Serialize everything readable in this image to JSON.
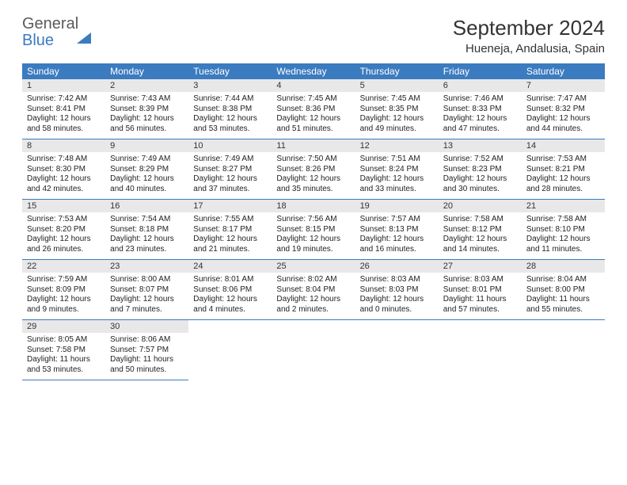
{
  "brand": {
    "word1": "General",
    "word2": "Blue"
  },
  "title": "September 2024",
  "location": "Hueneja, Andalusia, Spain",
  "colors": {
    "header_bg": "#3b7bbf",
    "header_text": "#ffffff",
    "daynum_bg": "#e8e8e8",
    "text": "#222222",
    "rule": "#3b7bbf"
  },
  "weekdays": [
    "Sunday",
    "Monday",
    "Tuesday",
    "Wednesday",
    "Thursday",
    "Friday",
    "Saturday"
  ],
  "weeks": [
    [
      {
        "n": "1",
        "sr": "7:42 AM",
        "ss": "8:41 PM",
        "dl": "12 hours and 58 minutes."
      },
      {
        "n": "2",
        "sr": "7:43 AM",
        "ss": "8:39 PM",
        "dl": "12 hours and 56 minutes."
      },
      {
        "n": "3",
        "sr": "7:44 AM",
        "ss": "8:38 PM",
        "dl": "12 hours and 53 minutes."
      },
      {
        "n": "4",
        "sr": "7:45 AM",
        "ss": "8:36 PM",
        "dl": "12 hours and 51 minutes."
      },
      {
        "n": "5",
        "sr": "7:45 AM",
        "ss": "8:35 PM",
        "dl": "12 hours and 49 minutes."
      },
      {
        "n": "6",
        "sr": "7:46 AM",
        "ss": "8:33 PM",
        "dl": "12 hours and 47 minutes."
      },
      {
        "n": "7",
        "sr": "7:47 AM",
        "ss": "8:32 PM",
        "dl": "12 hours and 44 minutes."
      }
    ],
    [
      {
        "n": "8",
        "sr": "7:48 AM",
        "ss": "8:30 PM",
        "dl": "12 hours and 42 minutes."
      },
      {
        "n": "9",
        "sr": "7:49 AM",
        "ss": "8:29 PM",
        "dl": "12 hours and 40 minutes."
      },
      {
        "n": "10",
        "sr": "7:49 AM",
        "ss": "8:27 PM",
        "dl": "12 hours and 37 minutes."
      },
      {
        "n": "11",
        "sr": "7:50 AM",
        "ss": "8:26 PM",
        "dl": "12 hours and 35 minutes."
      },
      {
        "n": "12",
        "sr": "7:51 AM",
        "ss": "8:24 PM",
        "dl": "12 hours and 33 minutes."
      },
      {
        "n": "13",
        "sr": "7:52 AM",
        "ss": "8:23 PM",
        "dl": "12 hours and 30 minutes."
      },
      {
        "n": "14",
        "sr": "7:53 AM",
        "ss": "8:21 PM",
        "dl": "12 hours and 28 minutes."
      }
    ],
    [
      {
        "n": "15",
        "sr": "7:53 AM",
        "ss": "8:20 PM",
        "dl": "12 hours and 26 minutes."
      },
      {
        "n": "16",
        "sr": "7:54 AM",
        "ss": "8:18 PM",
        "dl": "12 hours and 23 minutes."
      },
      {
        "n": "17",
        "sr": "7:55 AM",
        "ss": "8:17 PM",
        "dl": "12 hours and 21 minutes."
      },
      {
        "n": "18",
        "sr": "7:56 AM",
        "ss": "8:15 PM",
        "dl": "12 hours and 19 minutes."
      },
      {
        "n": "19",
        "sr": "7:57 AM",
        "ss": "8:13 PM",
        "dl": "12 hours and 16 minutes."
      },
      {
        "n": "20",
        "sr": "7:58 AM",
        "ss": "8:12 PM",
        "dl": "12 hours and 14 minutes."
      },
      {
        "n": "21",
        "sr": "7:58 AM",
        "ss": "8:10 PM",
        "dl": "12 hours and 11 minutes."
      }
    ],
    [
      {
        "n": "22",
        "sr": "7:59 AM",
        "ss": "8:09 PM",
        "dl": "12 hours and 9 minutes."
      },
      {
        "n": "23",
        "sr": "8:00 AM",
        "ss": "8:07 PM",
        "dl": "12 hours and 7 minutes."
      },
      {
        "n": "24",
        "sr": "8:01 AM",
        "ss": "8:06 PM",
        "dl": "12 hours and 4 minutes."
      },
      {
        "n": "25",
        "sr": "8:02 AM",
        "ss": "8:04 PM",
        "dl": "12 hours and 2 minutes."
      },
      {
        "n": "26",
        "sr": "8:03 AM",
        "ss": "8:03 PM",
        "dl": "12 hours and 0 minutes."
      },
      {
        "n": "27",
        "sr": "8:03 AM",
        "ss": "8:01 PM",
        "dl": "11 hours and 57 minutes."
      },
      {
        "n": "28",
        "sr": "8:04 AM",
        "ss": "8:00 PM",
        "dl": "11 hours and 55 minutes."
      }
    ],
    [
      {
        "n": "29",
        "sr": "8:05 AM",
        "ss": "7:58 PM",
        "dl": "11 hours and 53 minutes."
      },
      {
        "n": "30",
        "sr": "8:06 AM",
        "ss": "7:57 PM",
        "dl": "11 hours and 50 minutes."
      },
      null,
      null,
      null,
      null,
      null
    ]
  ],
  "labels": {
    "sunrise": "Sunrise:",
    "sunset": "Sunset:",
    "daylight": "Daylight:"
  }
}
